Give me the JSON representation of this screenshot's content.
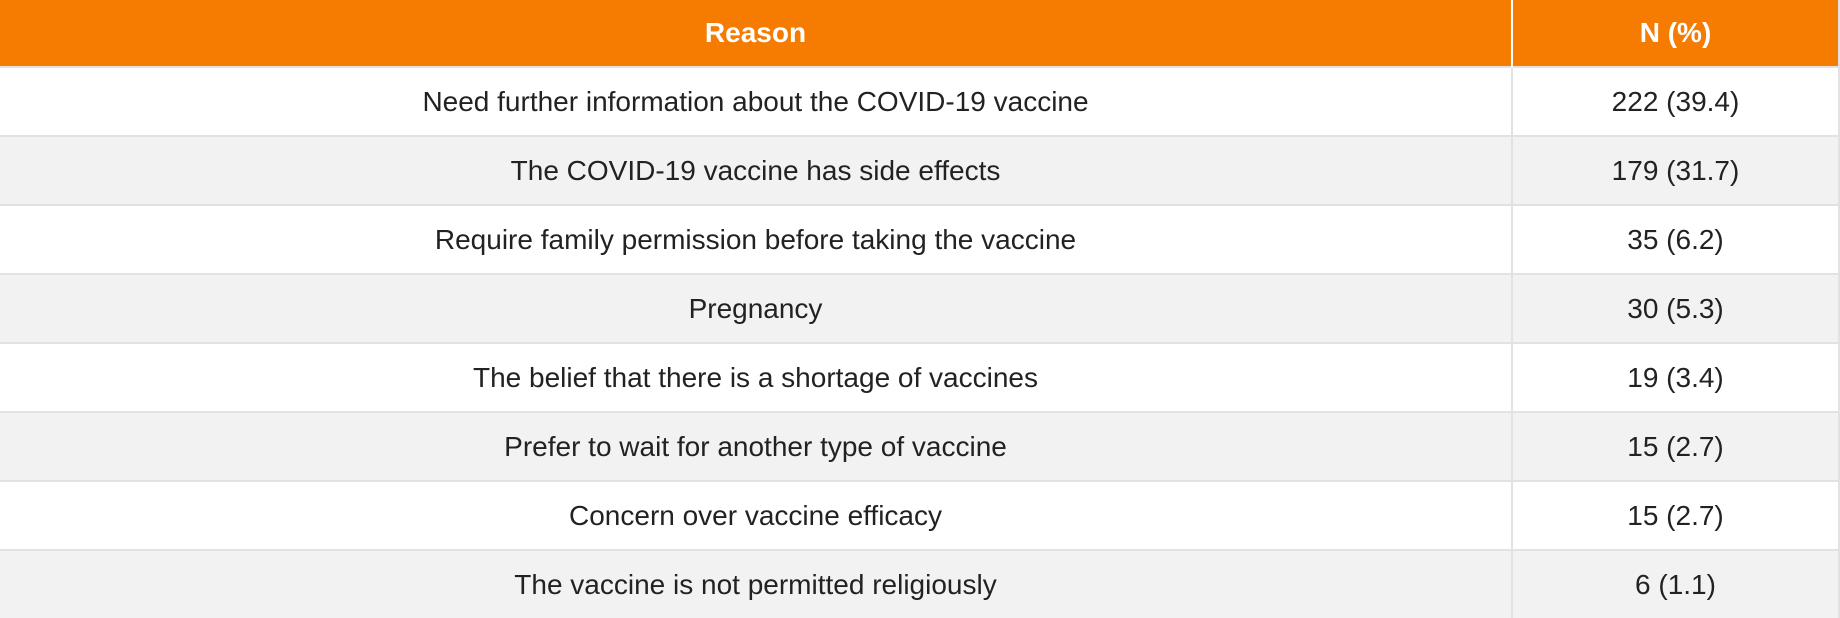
{
  "table": {
    "header": {
      "reason": "Reason",
      "n": "N (%)"
    },
    "header_color": "#f57c00",
    "rows": [
      {
        "reason": "Need further information about the COVID-19 vaccine",
        "n": "222 (39.4)"
      },
      {
        "reason": "The COVID-19 vaccine has side effects",
        "n": "179 (31.7)"
      },
      {
        "reason": "Require family permission before taking the vaccine",
        "n": "35 (6.2)"
      },
      {
        "reason": "Pregnancy",
        "n": "30 (5.3)"
      },
      {
        "reason": "The belief that there is a shortage of vaccines",
        "n": "19 (3.4)"
      },
      {
        "reason": "Prefer to wait for another type of vaccine",
        "n": "15 (2.7)"
      },
      {
        "reason": "Concern over vaccine efficacy",
        "n": "15 (2.7)"
      },
      {
        "reason": "The vaccine is not permitted religiously",
        "n": "6 (1.1)"
      }
    ]
  }
}
